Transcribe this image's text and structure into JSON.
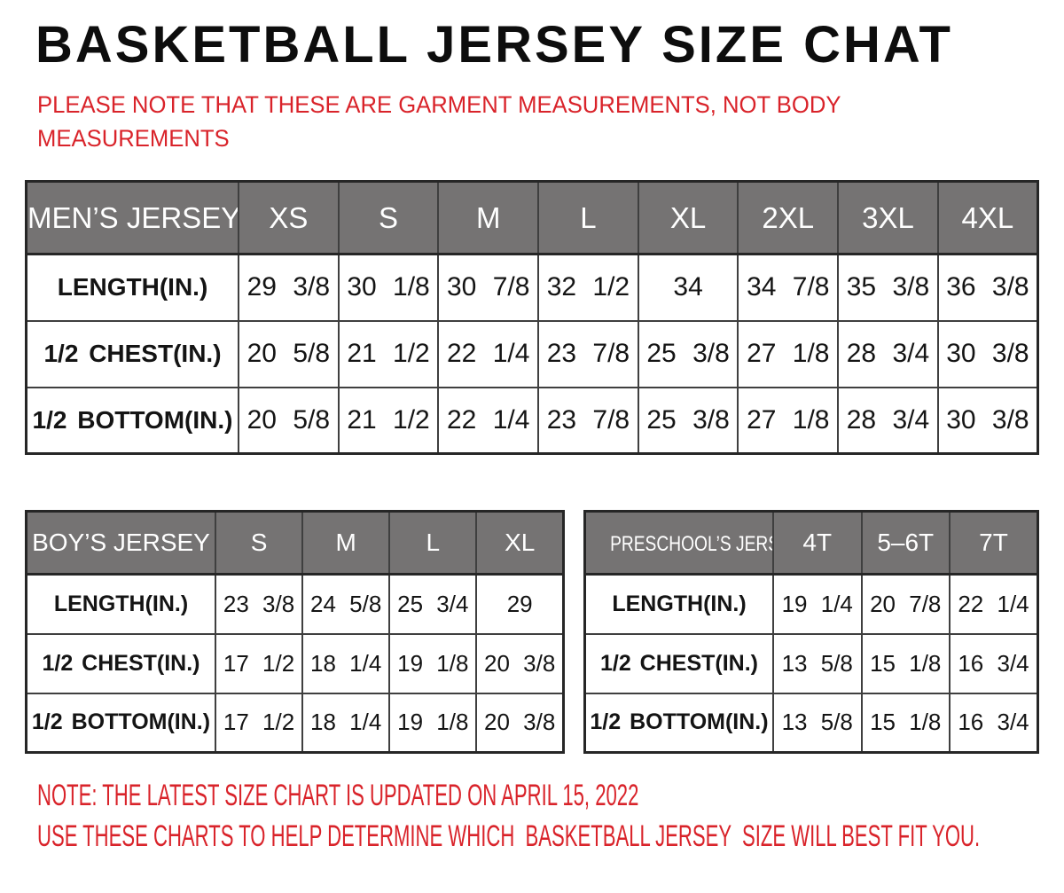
{
  "page": {
    "title": "BASKETBALL JERSEY SIZE CHAT",
    "subtitle_lines": [
      "PLEASE NOTE THAT THESE ARE GARMENT MEASUREMENTS, NOT BODY",
      "MEASUREMENTS"
    ],
    "notes": [
      "NOTE: THE LATEST SIZE CHART IS UPDATED ON APRIL 15, 2022",
      "USE THESE CHARTS TO HELP DETERMINE WHICH  BASKETBALL JERSEY  SIZE WILL BEST FIT YOU."
    ]
  },
  "colors": {
    "accent-red": "#d9232a",
    "header-gray": "#757373",
    "border-dark": "#262626",
    "border-inner": "#3f3f3f",
    "text-black": "#141414"
  },
  "tables": {
    "mens": {
      "header": [
        "MEN’S JERSEY",
        "XS",
        "S",
        "M",
        "L",
        "XL",
        "2XL",
        "3XL",
        "4XL"
      ],
      "rows": [
        {
          "label": "LENGTH(IN.)",
          "values": [
            "29 3/8",
            "30 1/8",
            "30 7/8",
            "32 1/2",
            "34",
            "34 7/8",
            "35 3/8",
            "36 3/8"
          ]
        },
        {
          "label": "1/2 CHEST(IN.)",
          "values": [
            "20 5/8",
            "21 1/2",
            "22 1/4",
            "23 7/8",
            "25 3/8",
            "27 1/8",
            "28 3/4",
            "30 3/8"
          ]
        },
        {
          "label": "1/2 BOTTOM(IN.)",
          "values": [
            "20 5/8",
            "21 1/2",
            "22 1/4",
            "23 7/8",
            "25 3/8",
            "27 1/8",
            "28 3/4",
            "30 3/8"
          ]
        }
      ]
    },
    "boys": {
      "header": [
        "BOY’S JERSEY",
        "S",
        "M",
        "L",
        "XL"
      ],
      "rows": [
        {
          "label": "LENGTH(IN.)",
          "values": [
            "23 3/8",
            "24 5/8",
            "25 3/4",
            "29"
          ]
        },
        {
          "label": "1/2 CHEST(IN.)",
          "values": [
            "17 1/2",
            "18 1/4",
            "19 1/8",
            "20 3/8"
          ]
        },
        {
          "label": "1/2 BOTTOM(IN.)",
          "values": [
            "17 1/2",
            "18 1/4",
            "19 1/8",
            "20 3/8"
          ]
        }
      ]
    },
    "preschool": {
      "header": [
        "PRESCHOOL’S JERSEY",
        "4T",
        "5–6T",
        "7T"
      ],
      "rows": [
        {
          "label": "LENGTH(IN.)",
          "values": [
            "19 1/4",
            "20 7/8",
            "22 1/4"
          ]
        },
        {
          "label": "1/2 CHEST(IN.)",
          "values": [
            "13 5/8",
            "15 1/8",
            "16 3/4"
          ]
        },
        {
          "label": "1/2 BOTTOM(IN.)",
          "values": [
            "13 5/8",
            "15 1/8",
            "16 3/4"
          ]
        }
      ]
    }
  }
}
